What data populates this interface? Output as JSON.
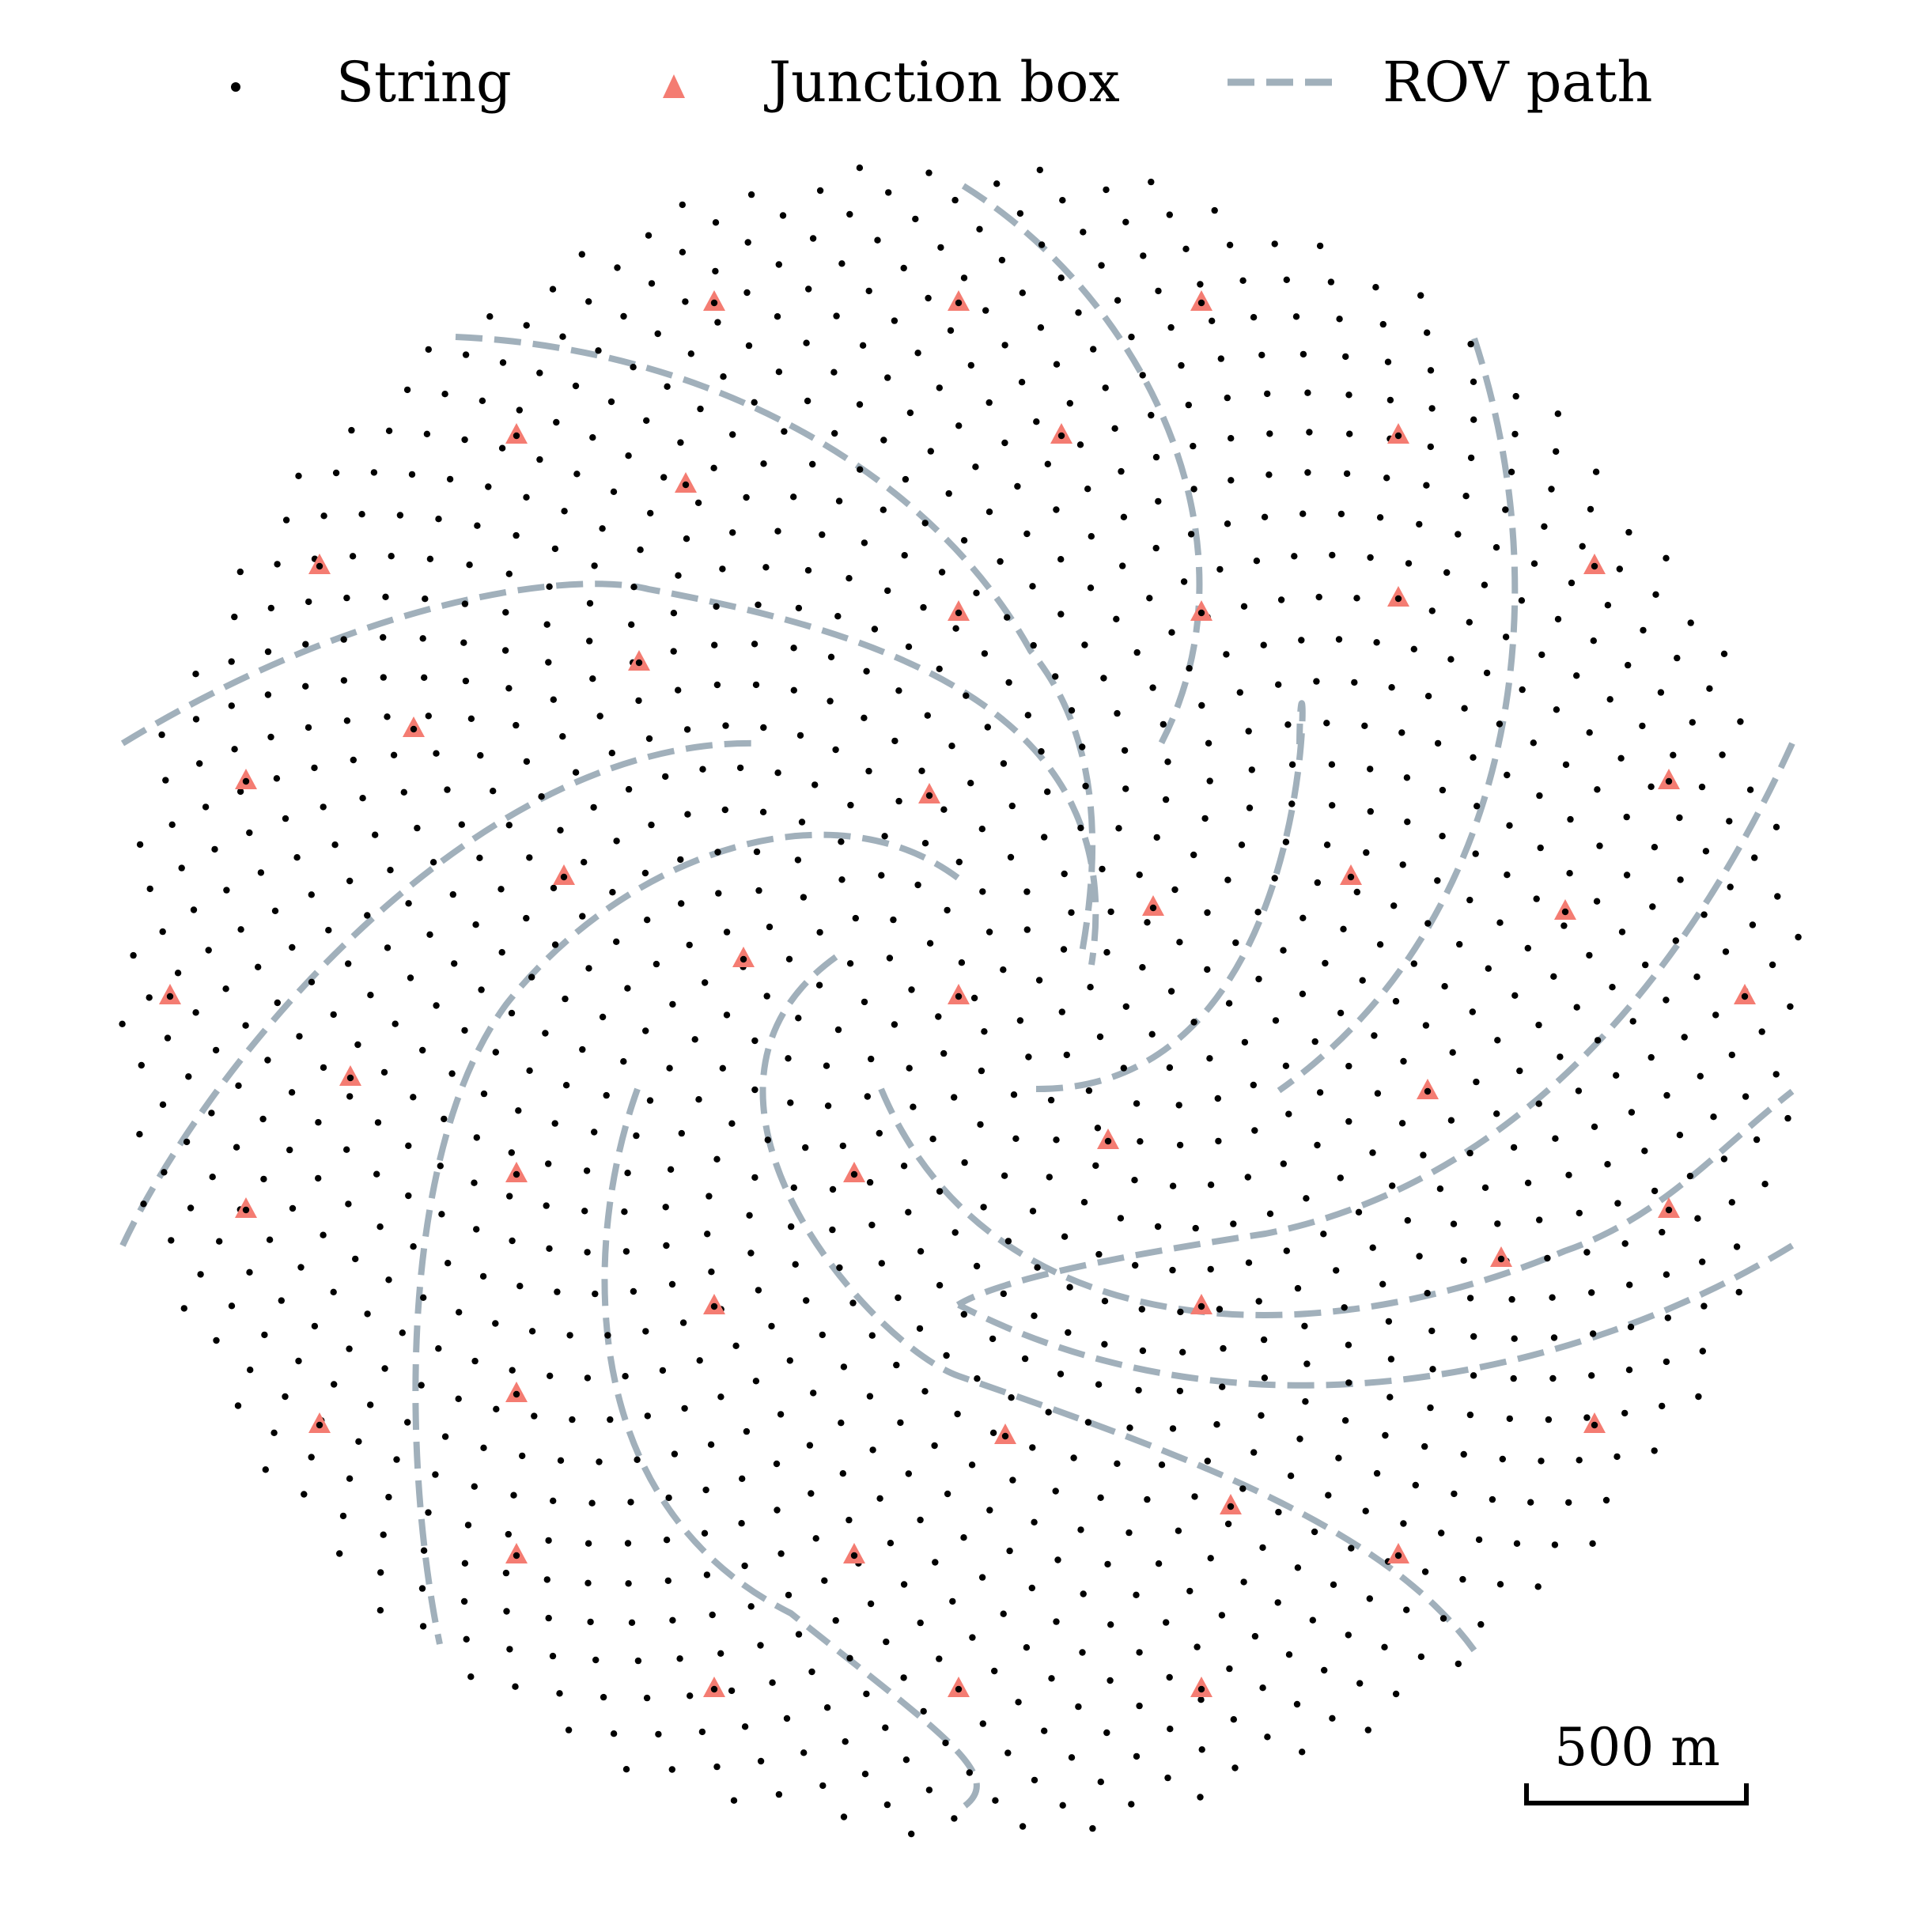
{
  "legend": {
    "string_label": "String",
    "junction_label": "Junction box",
    "rov_label": "ROV path"
  },
  "scale_bar": {
    "label": "500 m",
    "length_m": 500
  },
  "colors": {
    "string": "#000000",
    "junction": "#f47c72",
    "rov": "#a1b0bb",
    "background": "#ffffff"
  },
  "layout_description": {
    "string_count_approx": 1400,
    "junction_box_count": 48,
    "rov_path_count": 10,
    "array_shape": "spiral-packed disc (golden-angle / sunflower pattern)",
    "rov_path_shape": "curved spiral arms"
  }
}
